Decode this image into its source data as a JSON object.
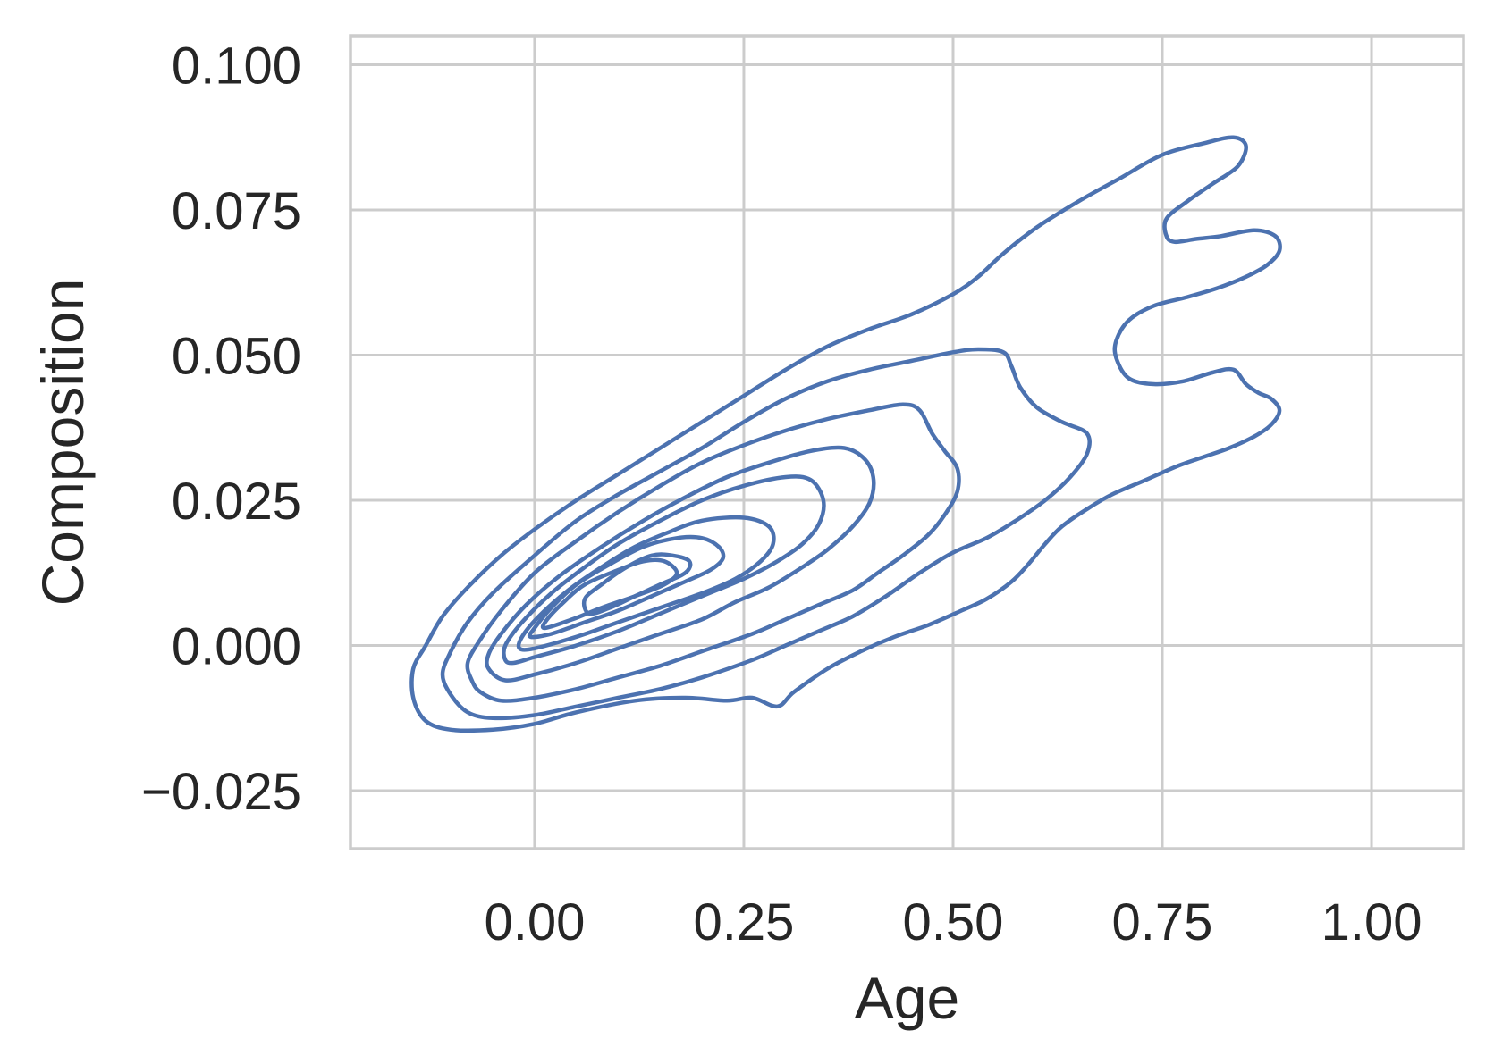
{
  "chart_data": {
    "type": "kde_contour",
    "xlabel": "Age",
    "ylabel": "Composition",
    "xlim": [
      -0.22,
      1.11
    ],
    "ylim": [
      -0.035,
      0.105
    ],
    "xticks": [
      0.0,
      0.25,
      0.5,
      0.75,
      1.0
    ],
    "yticks": [
      -0.025,
      0.0,
      0.025,
      0.05,
      0.075,
      0.1
    ],
    "xtick_labels": [
      "0.00",
      "0.25",
      "0.50",
      "0.75",
      "1.00"
    ],
    "ytick_labels": [
      "−0.025",
      "0.000",
      "0.025",
      "0.050",
      "0.075",
      "0.100"
    ],
    "grid": true,
    "line_color": "#4c72b0",
    "contours": [
      {
        "level": 1,
        "points": [
          [
            -0.145,
            -0.009
          ],
          [
            -0.145,
            -0.004
          ],
          [
            -0.13,
            0.0
          ],
          [
            -0.11,
            0.005
          ],
          [
            -0.08,
            0.01
          ],
          [
            -0.04,
            0.0155
          ],
          [
            0.0,
            0.02
          ],
          [
            0.05,
            0.025
          ],
          [
            0.1,
            0.0295
          ],
          [
            0.15,
            0.034
          ],
          [
            0.2,
            0.0385
          ],
          [
            0.25,
            0.043
          ],
          [
            0.3,
            0.0475
          ],
          [
            0.35,
            0.0515
          ],
          [
            0.4,
            0.0545
          ],
          [
            0.45,
            0.057
          ],
          [
            0.5,
            0.0605
          ],
          [
            0.53,
            0.0635
          ],
          [
            0.56,
            0.0675
          ],
          [
            0.6,
            0.072
          ],
          [
            0.65,
            0.0765
          ],
          [
            0.7,
            0.0805
          ],
          [
            0.75,
            0.0845
          ],
          [
            0.8,
            0.0865
          ],
          [
            0.835,
            0.0875
          ],
          [
            0.85,
            0.086
          ],
          [
            0.84,
            0.0825
          ],
          [
            0.81,
            0.0795
          ],
          [
            0.78,
            0.0765
          ],
          [
            0.755,
            0.0735
          ],
          [
            0.755,
            0.0705
          ],
          [
            0.765,
            0.0695
          ],
          [
            0.79,
            0.07
          ],
          [
            0.82,
            0.0705
          ],
          [
            0.86,
            0.0715
          ],
          [
            0.885,
            0.0705
          ],
          [
            0.89,
            0.068
          ],
          [
            0.875,
            0.0655
          ],
          [
            0.85,
            0.0635
          ],
          [
            0.815,
            0.0615
          ],
          [
            0.78,
            0.06
          ],
          [
            0.74,
            0.0585
          ],
          [
            0.71,
            0.056
          ],
          [
            0.695,
            0.0525
          ],
          [
            0.695,
            0.0495
          ],
          [
            0.71,
            0.046
          ],
          [
            0.74,
            0.045
          ],
          [
            0.775,
            0.0455
          ],
          [
            0.81,
            0.047
          ],
          [
            0.835,
            0.0475
          ],
          [
            0.85,
            0.045
          ],
          [
            0.865,
            0.0435
          ],
          [
            0.88,
            0.0425
          ],
          [
            0.89,
            0.0405
          ],
          [
            0.88,
            0.038
          ],
          [
            0.86,
            0.036
          ],
          [
            0.83,
            0.034
          ],
          [
            0.8,
            0.0325
          ],
          [
            0.77,
            0.031
          ],
          [
            0.73,
            0.0285
          ],
          [
            0.69,
            0.026
          ],
          [
            0.66,
            0.0235
          ],
          [
            0.63,
            0.0205
          ],
          [
            0.61,
            0.0175
          ],
          [
            0.59,
            0.014
          ],
          [
            0.57,
            0.011
          ],
          [
            0.54,
            0.008
          ],
          [
            0.51,
            0.006
          ],
          [
            0.47,
            0.0035
          ],
          [
            0.43,
            0.0015
          ],
          [
            0.39,
            -0.001
          ],
          [
            0.35,
            -0.004
          ],
          [
            0.31,
            -0.008
          ],
          [
            0.29,
            -0.0105
          ],
          [
            0.26,
            -0.009
          ],
          [
            0.23,
            -0.0095
          ],
          [
            0.18,
            -0.009
          ],
          [
            0.12,
            -0.0095
          ],
          [
            0.05,
            -0.0115
          ],
          [
            0.0,
            -0.0135
          ],
          [
            -0.05,
            -0.0145
          ],
          [
            -0.1,
            -0.0145
          ],
          [
            -0.13,
            -0.013
          ],
          [
            -0.145,
            -0.009
          ]
        ]
      },
      {
        "level": 2,
        "points": [
          [
            -0.1,
            -0.0085
          ],
          [
            -0.11,
            -0.005
          ],
          [
            -0.1,
            -0.001
          ],
          [
            -0.08,
            0.004
          ],
          [
            -0.05,
            0.009
          ],
          [
            0.0,
            0.0155
          ],
          [
            0.05,
            0.0215
          ],
          [
            0.1,
            0.026
          ],
          [
            0.15,
            0.03
          ],
          [
            0.2,
            0.034
          ],
          [
            0.25,
            0.0385
          ],
          [
            0.3,
            0.0425
          ],
          [
            0.35,
            0.0455
          ],
          [
            0.4,
            0.0475
          ],
          [
            0.45,
            0.049
          ],
          [
            0.5,
            0.0505
          ],
          [
            0.53,
            0.051
          ],
          [
            0.56,
            0.0505
          ],
          [
            0.57,
            0.048
          ],
          [
            0.58,
            0.0445
          ],
          [
            0.6,
            0.041
          ],
          [
            0.63,
            0.0385
          ],
          [
            0.66,
            0.0365
          ],
          [
            0.66,
            0.033
          ],
          [
            0.64,
            0.029
          ],
          [
            0.61,
            0.025
          ],
          [
            0.575,
            0.0215
          ],
          [
            0.54,
            0.0185
          ],
          [
            0.5,
            0.016
          ],
          [
            0.46,
            0.0125
          ],
          [
            0.42,
            0.0085
          ],
          [
            0.38,
            0.005
          ],
          [
            0.34,
            0.0025
          ],
          [
            0.3,
            0.0
          ],
          [
            0.26,
            -0.0025
          ],
          [
            0.2,
            -0.0055
          ],
          [
            0.15,
            -0.0075
          ],
          [
            0.1,
            -0.009
          ],
          [
            0.05,
            -0.0105
          ],
          [
            0.0,
            -0.012
          ],
          [
            -0.05,
            -0.0125
          ],
          [
            -0.08,
            -0.0115
          ],
          [
            -0.1,
            -0.0085
          ]
        ]
      },
      {
        "level": 3,
        "points": [
          [
            -0.075,
            -0.006
          ],
          [
            -0.08,
            -0.003
          ],
          [
            -0.065,
            0.001
          ],
          [
            -0.04,
            0.006
          ],
          [
            0.0,
            0.0125
          ],
          [
            0.05,
            0.018
          ],
          [
            0.1,
            0.023
          ],
          [
            0.15,
            0.0275
          ],
          [
            0.2,
            0.0315
          ],
          [
            0.25,
            0.0345
          ],
          [
            0.3,
            0.037
          ],
          [
            0.35,
            0.039
          ],
          [
            0.4,
            0.0405
          ],
          [
            0.44,
            0.0415
          ],
          [
            0.46,
            0.0405
          ],
          [
            0.475,
            0.0365
          ],
          [
            0.49,
            0.0335
          ],
          [
            0.505,
            0.0305
          ],
          [
            0.505,
            0.0265
          ],
          [
            0.49,
            0.0225
          ],
          [
            0.47,
            0.019
          ],
          [
            0.44,
            0.0155
          ],
          [
            0.41,
            0.0125
          ],
          [
            0.38,
            0.0095
          ],
          [
            0.34,
            0.007
          ],
          [
            0.3,
            0.0045
          ],
          [
            0.26,
            0.002
          ],
          [
            0.2,
            -0.001
          ],
          [
            0.15,
            -0.0035
          ],
          [
            0.1,
            -0.0055
          ],
          [
            0.05,
            -0.0075
          ],
          [
            0.0,
            -0.009
          ],
          [
            -0.04,
            -0.0095
          ],
          [
            -0.065,
            -0.008
          ],
          [
            -0.075,
            -0.006
          ]
        ]
      },
      {
        "level": 4,
        "points": [
          [
            -0.055,
            -0.004
          ],
          [
            -0.055,
            -0.0015
          ],
          [
            -0.04,
            0.002
          ],
          [
            -0.01,
            0.007
          ],
          [
            0.03,
            0.012
          ],
          [
            0.08,
            0.017
          ],
          [
            0.13,
            0.0215
          ],
          [
            0.18,
            0.0255
          ],
          [
            0.23,
            0.029
          ],
          [
            0.28,
            0.0315
          ],
          [
            0.33,
            0.0335
          ],
          [
            0.37,
            0.034
          ],
          [
            0.395,
            0.032
          ],
          [
            0.405,
            0.0285
          ],
          [
            0.4,
            0.0245
          ],
          [
            0.38,
            0.0205
          ],
          [
            0.35,
            0.0165
          ],
          [
            0.32,
            0.0135
          ],
          [
            0.28,
            0.01
          ],
          [
            0.24,
            0.0075
          ],
          [
            0.2,
            0.0045
          ],
          [
            0.15,
            0.002
          ],
          [
            0.1,
            -0.0005
          ],
          [
            0.05,
            -0.003
          ],
          [
            0.0,
            -0.005
          ],
          [
            -0.035,
            -0.006
          ],
          [
            -0.055,
            -0.004
          ]
        ]
      },
      {
        "level": 5,
        "points": [
          [
            -0.035,
            -0.0025
          ],
          [
            -0.035,
            0.0
          ],
          [
            -0.015,
            0.004
          ],
          [
            0.02,
            0.009
          ],
          [
            0.06,
            0.0135
          ],
          [
            0.1,
            0.0175
          ],
          [
            0.15,
            0.0215
          ],
          [
            0.2,
            0.025
          ],
          [
            0.25,
            0.0275
          ],
          [
            0.3,
            0.029
          ],
          [
            0.33,
            0.0285
          ],
          [
            0.345,
            0.025
          ],
          [
            0.34,
            0.021
          ],
          [
            0.32,
            0.0175
          ],
          [
            0.29,
            0.0145
          ],
          [
            0.25,
            0.0115
          ],
          [
            0.2,
            0.0085
          ],
          [
            0.15,
            0.0055
          ],
          [
            0.1,
            0.0025
          ],
          [
            0.05,
            0.0
          ],
          [
            0.0,
            -0.002
          ],
          [
            -0.025,
            -0.003
          ],
          [
            -0.035,
            -0.0025
          ]
        ]
      },
      {
        "level": 6,
        "points": [
          [
            -0.018,
            -0.0005
          ],
          [
            -0.015,
            0.0015
          ],
          [
            0.005,
            0.005
          ],
          [
            0.04,
            0.0095
          ],
          [
            0.08,
            0.0135
          ],
          [
            0.12,
            0.017
          ],
          [
            0.16,
            0.0195
          ],
          [
            0.2,
            0.0215
          ],
          [
            0.25,
            0.022
          ],
          [
            0.28,
            0.0205
          ],
          [
            0.285,
            0.0175
          ],
          [
            0.27,
            0.0145
          ],
          [
            0.24,
            0.0115
          ],
          [
            0.2,
            0.009
          ],
          [
            0.15,
            0.0065
          ],
          [
            0.1,
            0.004
          ],
          [
            0.05,
            0.0015
          ],
          [
            0.0,
            -0.0005
          ],
          [
            -0.018,
            -0.0005
          ]
        ]
      },
      {
        "level": 7,
        "points": [
          [
            -0.005,
            0.0015
          ],
          [
            0.0,
            0.003
          ],
          [
            0.02,
            0.0065
          ],
          [
            0.05,
            0.0105
          ],
          [
            0.09,
            0.014
          ],
          [
            0.13,
            0.017
          ],
          [
            0.17,
            0.0185
          ],
          [
            0.2,
            0.0185
          ],
          [
            0.22,
            0.017
          ],
          [
            0.225,
            0.015
          ],
          [
            0.21,
            0.013
          ],
          [
            0.18,
            0.011
          ],
          [
            0.14,
            0.0085
          ],
          [
            0.1,
            0.006
          ],
          [
            0.06,
            0.004
          ],
          [
            0.02,
            0.002
          ],
          [
            -0.005,
            0.0015
          ]
        ]
      },
      {
        "level": 8,
        "points": [
          [
            0.012,
            0.003
          ],
          [
            0.015,
            0.0045
          ],
          [
            0.035,
            0.0075
          ],
          [
            0.06,
            0.0105
          ],
          [
            0.1,
            0.013
          ],
          [
            0.13,
            0.0145
          ],
          [
            0.155,
            0.0145
          ],
          [
            0.17,
            0.0125
          ],
          [
            0.155,
            0.0105
          ],
          [
            0.12,
            0.0085
          ],
          [
            0.08,
            0.0065
          ],
          [
            0.045,
            0.0045
          ],
          [
            0.012,
            0.003
          ]
        ]
      },
      {
        "level": 9,
        "points": [
          [
            0.065,
            0.0055
          ],
          [
            0.06,
            0.008
          ],
          [
            0.08,
            0.0105
          ],
          [
            0.11,
            0.0135
          ],
          [
            0.14,
            0.0155
          ],
          [
            0.165,
            0.0155
          ],
          [
            0.185,
            0.0145
          ],
          [
            0.18,
            0.0125
          ],
          [
            0.15,
            0.0105
          ],
          [
            0.12,
            0.0085
          ],
          [
            0.09,
            0.0065
          ],
          [
            0.065,
            0.0055
          ]
        ]
      }
    ]
  }
}
